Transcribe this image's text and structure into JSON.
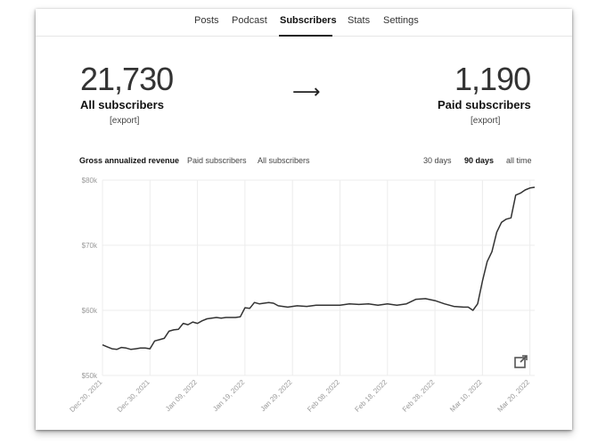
{
  "nav": {
    "items": [
      {
        "label": "Posts"
      },
      {
        "label": "Podcast"
      },
      {
        "label": "Subscribers"
      },
      {
        "label": "Stats"
      },
      {
        "label": "Settings"
      }
    ],
    "active": "Subscribers"
  },
  "stats": {
    "all": {
      "value": "21,730",
      "label": "All subscribers",
      "export": "[export]"
    },
    "paid": {
      "value": "1,190",
      "label": "Paid subscribers",
      "export": "[export]"
    },
    "arrow": "⟶"
  },
  "chart_tabs": [
    {
      "label": "Gross annualized revenue"
    },
    {
      "label": "Paid subscribers"
    },
    {
      "label": "All subscribers"
    }
  ],
  "range_tabs": [
    {
      "label": "30 days"
    },
    {
      "label": "90 days"
    },
    {
      "label": "all time"
    }
  ],
  "active_range": "90 days",
  "icons": {
    "external": "external-link-icon"
  },
  "colors": {
    "line": "#333333",
    "grid": "#ececec",
    "axis_text": "#999999"
  },
  "chart_data": {
    "type": "line",
    "ylim": [
      50000,
      80000
    ],
    "yticks": [
      {
        "value": 50000,
        "label": "$50k"
      },
      {
        "value": 60000,
        "label": "$60k"
      },
      {
        "value": 70000,
        "label": "$70k"
      },
      {
        "value": 80000,
        "label": "$80k"
      }
    ],
    "xticks": [
      "Dec 20, 2021",
      "Dec 30, 2021",
      "Jan 09, 2022",
      "Jan 19, 2022",
      "Jan 29, 2022",
      "Feb 08, 2022",
      "Feb 18, 2022",
      "Feb 28, 2022",
      "Mar 10, 2022",
      "Mar 20, 2022"
    ],
    "x_range": [
      "Dec 20, 2021",
      "Mar 21, 2022"
    ],
    "series": [
      {
        "points": [
          [
            "Dec 20, 2021",
            54700
          ],
          [
            "Dec 21, 2021",
            54400
          ],
          [
            "Dec 22, 2021",
            54100
          ],
          [
            "Dec 23, 2021",
            54000
          ],
          [
            "Dec 24, 2021",
            54300
          ],
          [
            "Dec 25, 2021",
            54200
          ],
          [
            "Dec 26, 2021",
            54000
          ],
          [
            "Dec 27, 2021",
            54100
          ],
          [
            "Dec 28, 2021",
            54200
          ],
          [
            "Dec 29, 2021",
            54200
          ],
          [
            "Dec 30, 2021",
            54100
          ],
          [
            "Dec 31, 2021",
            55300
          ],
          [
            "Jan 01, 2022",
            55500
          ],
          [
            "Jan 02, 2022",
            55700
          ],
          [
            "Jan 03, 2022",
            56800
          ],
          [
            "Jan 04, 2022",
            57000
          ],
          [
            "Jan 05, 2022",
            57100
          ],
          [
            "Jan 06, 2022",
            58000
          ],
          [
            "Jan 07, 2022",
            57800
          ],
          [
            "Jan 08, 2022",
            58200
          ],
          [
            "Jan 09, 2022",
            58000
          ],
          [
            "Jan 10, 2022",
            58400
          ],
          [
            "Jan 11, 2022",
            58700
          ],
          [
            "Jan 12, 2022",
            58800
          ],
          [
            "Jan 13, 2022",
            58900
          ],
          [
            "Jan 14, 2022",
            58800
          ],
          [
            "Jan 15, 2022",
            58900
          ],
          [
            "Jan 16, 2022",
            58900
          ],
          [
            "Jan 17, 2022",
            58900
          ],
          [
            "Jan 18, 2022",
            59000
          ],
          [
            "Jan 19, 2022",
            60400
          ],
          [
            "Jan 20, 2022",
            60300
          ],
          [
            "Jan 21, 2022",
            61200
          ],
          [
            "Jan 22, 2022",
            61000
          ],
          [
            "Jan 23, 2022",
            61100
          ],
          [
            "Jan 24, 2022",
            61200
          ],
          [
            "Jan 25, 2022",
            61100
          ],
          [
            "Jan 26, 2022",
            60700
          ],
          [
            "Jan 27, 2022",
            60600
          ],
          [
            "Jan 28, 2022",
            60500
          ],
          [
            "Jan 29, 2022",
            60600
          ],
          [
            "Jan 30, 2022",
            60700
          ],
          [
            "Feb 01, 2022",
            60600
          ],
          [
            "Feb 03, 2022",
            60800
          ],
          [
            "Feb 05, 2022",
            60800
          ],
          [
            "Feb 08, 2022",
            60800
          ],
          [
            "Feb 10, 2022",
            61000
          ],
          [
            "Feb 12, 2022",
            60900
          ],
          [
            "Feb 14, 2022",
            61000
          ],
          [
            "Feb 16, 2022",
            60800
          ],
          [
            "Feb 18, 2022",
            61000
          ],
          [
            "Feb 20, 2022",
            60800
          ],
          [
            "Feb 22, 2022",
            61000
          ],
          [
            "Feb 24, 2022",
            61700
          ],
          [
            "Feb 26, 2022",
            61800
          ],
          [
            "Feb 28, 2022",
            61500
          ],
          [
            "Mar 02, 2022",
            61000
          ],
          [
            "Mar 04, 2022",
            60600
          ],
          [
            "Mar 06, 2022",
            60500
          ],
          [
            "Mar 07, 2022",
            60500
          ],
          [
            "Mar 08, 2022",
            60000
          ],
          [
            "Mar 09, 2022",
            61000
          ],
          [
            "Mar 10, 2022",
            64500
          ],
          [
            "Mar 11, 2022",
            67500
          ],
          [
            "Mar 12, 2022",
            69000
          ],
          [
            "Mar 13, 2022",
            72000
          ],
          [
            "Mar 14, 2022",
            73500
          ],
          [
            "Mar 15, 2022",
            74000
          ],
          [
            "Mar 16, 2022",
            74200
          ],
          [
            "Mar 17, 2022",
            77700
          ],
          [
            "Mar 18, 2022",
            78000
          ],
          [
            "Mar 19, 2022",
            78500
          ],
          [
            "Mar 20, 2022",
            78800
          ],
          [
            "Mar 21, 2022",
            78900
          ]
        ]
      }
    ]
  }
}
